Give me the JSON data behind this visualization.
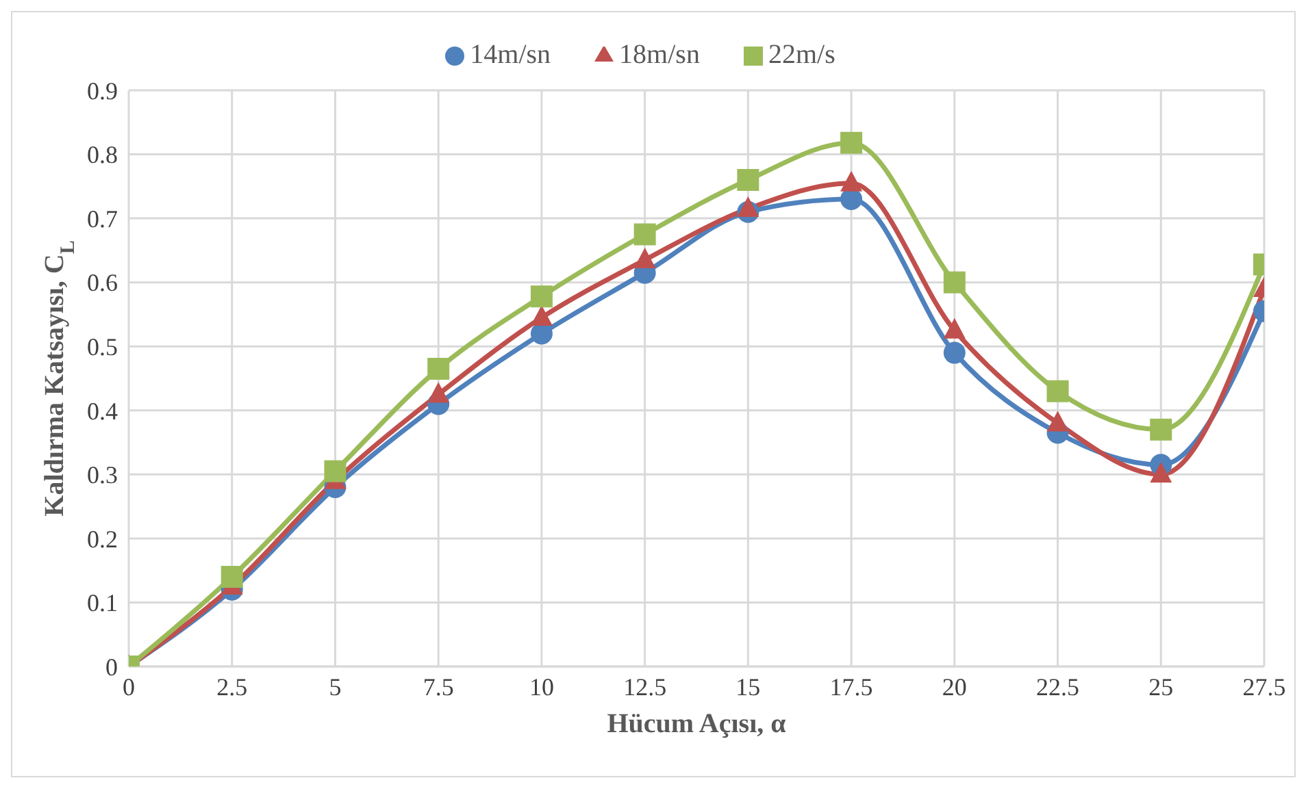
{
  "chart_data": {
    "type": "line",
    "xlabel": "Hücum Açısı, α",
    "ylabel": "Kaldırma Katsayısı, C$_{L}$",
    "x": [
      0,
      2.5,
      5,
      7.5,
      10,
      12.5,
      15,
      17.5,
      20,
      22.5,
      25,
      27.5
    ],
    "xlim": [
      0,
      27.5
    ],
    "xticks": [
      0,
      2.5,
      5,
      7.5,
      10,
      12.5,
      15,
      17.5,
      20,
      22.5,
      25,
      27.5
    ],
    "ylim": [
      0,
      0.9
    ],
    "yticks": [
      0,
      0.1,
      0.2,
      0.3,
      0.4,
      0.5,
      0.6,
      0.7,
      0.8,
      0.9
    ],
    "grid": true,
    "legend": "top",
    "line_style": "solid",
    "series": [
      {
        "name": "14m/sn",
        "color": "#4f81bd",
        "marker": "circle",
        "values": [
          0,
          0.12,
          0.28,
          0.41,
          0.52,
          0.615,
          0.71,
          0.73,
          0.49,
          0.365,
          0.315,
          0.555
        ]
      },
      {
        "name": "18m/sn",
        "color": "#c0504d",
        "marker": "triangle",
        "values": [
          0,
          0.125,
          0.29,
          0.425,
          0.545,
          0.635,
          0.715,
          0.755,
          0.525,
          0.38,
          0.3,
          0.59
        ]
      },
      {
        "name": "22m/s",
        "color": "#9bbb59",
        "marker": "square",
        "values": [
          0,
          0.14,
          0.305,
          0.465,
          0.578,
          0.675,
          0.76,
          0.818,
          0.6,
          0.43,
          0.37,
          0.628
        ]
      }
    ]
  }
}
